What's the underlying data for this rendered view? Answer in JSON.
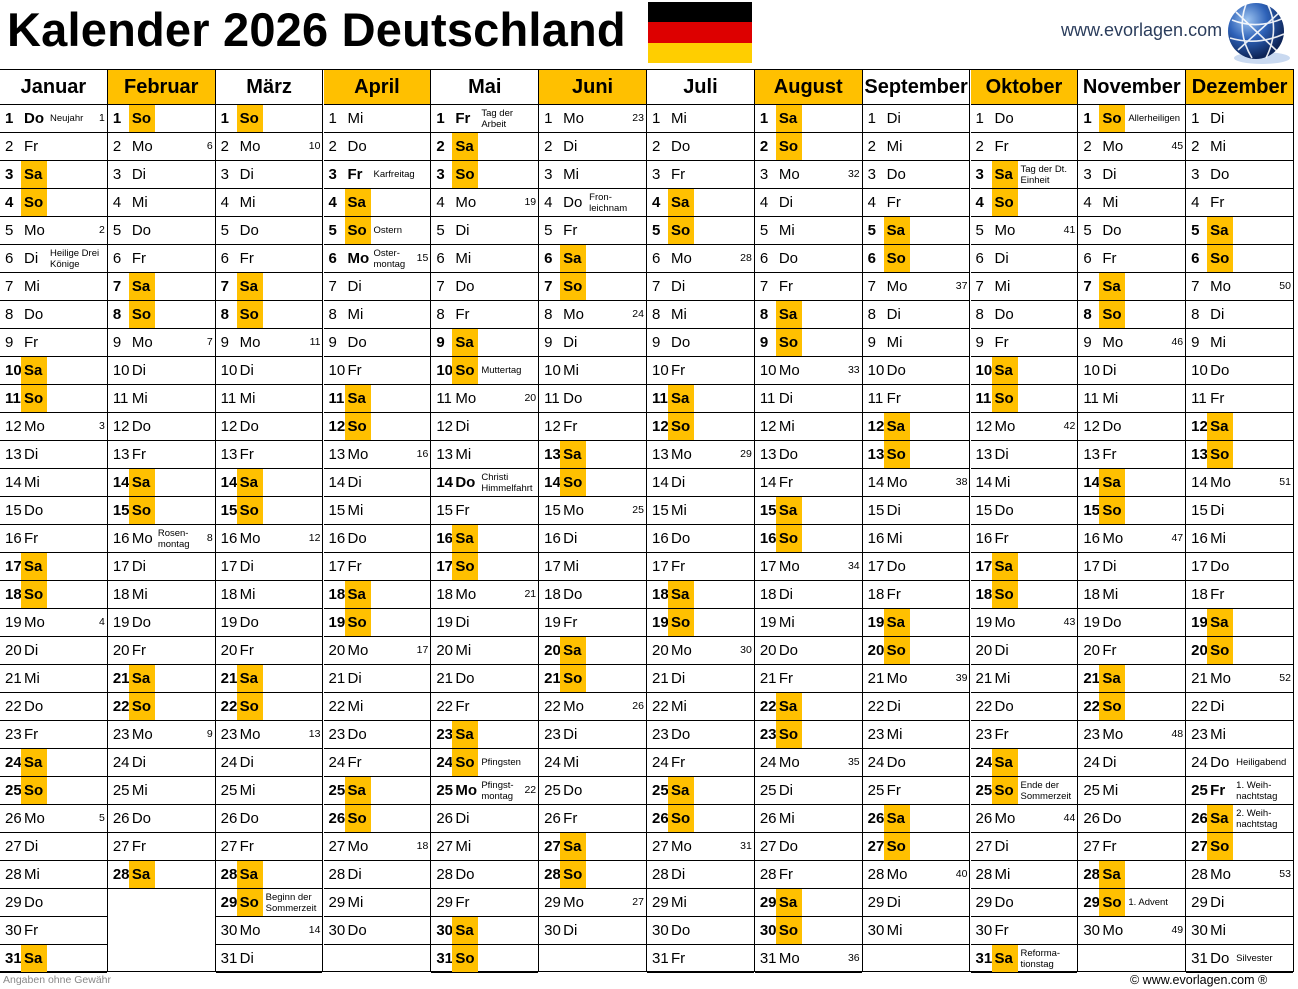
{
  "title": "Kalender 2026 Deutschland",
  "logo_text": "www.evorlagen.com",
  "footer": {
    "disclaimer": "Angaben ohne Gewähr",
    "copyright": "© www.evorlagen.com ®"
  },
  "colors": {
    "accent": "#FFC000",
    "flag_black": "#000000",
    "flag_red": "#DD0000",
    "flag_gold": "#FFCE00"
  },
  "weekend_days": [
    "Sa",
    "So"
  ],
  "day_numbers": [
    "1",
    "2",
    "3",
    "4",
    "5",
    "6",
    "7",
    "8",
    "9",
    "10",
    "11",
    "12",
    "13",
    "14",
    "15",
    "16",
    "17",
    "18",
    "19",
    "20",
    "21",
    "22",
    "23",
    "24",
    "25",
    "26",
    "27",
    "28",
    "29",
    "30",
    "31"
  ],
  "months": [
    {
      "name": "Januar",
      "highlight": false,
      "weekdays": [
        "Do",
        "Fr",
        "Sa",
        "So",
        "Mo",
        "Di",
        "Mi",
        "Do",
        "Fr",
        "Sa",
        "So",
        "Mo",
        "Di",
        "Mi",
        "Do",
        "Fr",
        "Sa",
        "So",
        "Mo",
        "Di",
        "Mi",
        "Do",
        "Fr",
        "Sa",
        "So",
        "Mo",
        "Di",
        "Mi",
        "Do",
        "Fr",
        "Sa"
      ],
      "holidays": {
        "1": {
          "t": "Neujahr",
          "b": true
        },
        "6": {
          "t": "Heilige Drei\nKönige",
          "b": false
        }
      },
      "kw": {
        "1": "1",
        "5": "2",
        "12": "3",
        "19": "4",
        "26": "5"
      }
    },
    {
      "name": "Februar",
      "highlight": true,
      "weekdays": [
        "So",
        "Mo",
        "Di",
        "Mi",
        "Do",
        "Fr",
        "Sa",
        "So",
        "Mo",
        "Di",
        "Mi",
        "Do",
        "Fr",
        "Sa",
        "So",
        "Mo",
        "Di",
        "Mi",
        "Do",
        "Fr",
        "Sa",
        "So",
        "Mo",
        "Di",
        "Mi",
        "Do",
        "Fr",
        "Sa"
      ],
      "holidays": {
        "16": {
          "t": "Rosen-\nmontag",
          "b": false
        }
      },
      "kw": {
        "2": "6",
        "9": "7",
        "16": "8",
        "23": "9"
      }
    },
    {
      "name": "März",
      "highlight": false,
      "weekdays": [
        "So",
        "Mo",
        "Di",
        "Mi",
        "Do",
        "Fr",
        "Sa",
        "So",
        "Mo",
        "Di",
        "Mi",
        "Do",
        "Fr",
        "Sa",
        "So",
        "Mo",
        "Di",
        "Mi",
        "Do",
        "Fr",
        "Sa",
        "So",
        "Mo",
        "Di",
        "Mi",
        "Do",
        "Fr",
        "Sa",
        "So",
        "Mo",
        "Di"
      ],
      "holidays": {
        "29": {
          "t": "Beginn der\nSommerzeit",
          "b": false
        }
      },
      "kw": {
        "2": "10",
        "9": "11",
        "16": "12",
        "23": "13",
        "30": "14"
      }
    },
    {
      "name": "April",
      "highlight": true,
      "weekdays": [
        "Mi",
        "Do",
        "Fr",
        "Sa",
        "So",
        "Mo",
        "Di",
        "Mi",
        "Do",
        "Fr",
        "Sa",
        "So",
        "Mo",
        "Di",
        "Mi",
        "Do",
        "Fr",
        "Sa",
        "So",
        "Mo",
        "Di",
        "Mi",
        "Do",
        "Fr",
        "Sa",
        "So",
        "Mo",
        "Di",
        "Mi",
        "Do"
      ],
      "holidays": {
        "3": {
          "t": "Karfreitag",
          "b": true
        },
        "5": {
          "t": "Ostern",
          "b": true
        },
        "6": {
          "t": "Oster-\nmontag",
          "b": true
        }
      },
      "kw": {
        "6": "15",
        "13": "16",
        "20": "17",
        "27": "18"
      }
    },
    {
      "name": "Mai",
      "highlight": false,
      "weekdays": [
        "Fr",
        "Sa",
        "So",
        "Mo",
        "Di",
        "Mi",
        "Do",
        "Fr",
        "Sa",
        "So",
        "Mo",
        "Di",
        "Mi",
        "Do",
        "Fr",
        "Sa",
        "So",
        "Mo",
        "Di",
        "Mi",
        "Do",
        "Fr",
        "Sa",
        "So",
        "Mo",
        "Di",
        "Mi",
        "Do",
        "Fr",
        "Sa",
        "So"
      ],
      "holidays": {
        "1": {
          "t": "Tag der\nArbeit",
          "b": true
        },
        "10": {
          "t": "Muttertag",
          "b": false
        },
        "14": {
          "t": "Christi\nHimmelfahrt",
          "b": true
        },
        "24": {
          "t": "Pfingsten",
          "b": true
        },
        "25": {
          "t": "Pfingst-\nmontag",
          "b": true
        }
      },
      "kw": {
        "4": "19",
        "11": "20",
        "18": "21",
        "25": "22"
      }
    },
    {
      "name": "Juni",
      "highlight": true,
      "weekdays": [
        "Mo",
        "Di",
        "Mi",
        "Do",
        "Fr",
        "Sa",
        "So",
        "Mo",
        "Di",
        "Mi",
        "Do",
        "Fr",
        "Sa",
        "So",
        "Mo",
        "Di",
        "Mi",
        "Do",
        "Fr",
        "Sa",
        "So",
        "Mo",
        "Di",
        "Mi",
        "Do",
        "Fr",
        "Sa",
        "So",
        "Mo",
        "Di"
      ],
      "holidays": {
        "4": {
          "t": "Fron-\nleichnam",
          "b": false
        }
      },
      "kw": {
        "1": "23",
        "8": "24",
        "15": "25",
        "22": "26",
        "29": "27"
      }
    },
    {
      "name": "Juli",
      "highlight": false,
      "weekdays": [
        "Mi",
        "Do",
        "Fr",
        "Sa",
        "So",
        "Mo",
        "Di",
        "Mi",
        "Do",
        "Fr",
        "Sa",
        "So",
        "Mo",
        "Di",
        "Mi",
        "Do",
        "Fr",
        "Sa",
        "So",
        "Mo",
        "Di",
        "Mi",
        "Do",
        "Fr",
        "Sa",
        "So",
        "Mo",
        "Di",
        "Mi",
        "Do",
        "Fr"
      ],
      "holidays": {},
      "kw": {
        "6": "28",
        "13": "29",
        "20": "30",
        "27": "31"
      }
    },
    {
      "name": "August",
      "highlight": true,
      "weekdays": [
        "Sa",
        "So",
        "Mo",
        "Di",
        "Mi",
        "Do",
        "Fr",
        "Sa",
        "So",
        "Mo",
        "Di",
        "Mi",
        "Do",
        "Fr",
        "Sa",
        "So",
        "Mo",
        "Di",
        "Mi",
        "Do",
        "Fr",
        "Sa",
        "So",
        "Mo",
        "Di",
        "Mi",
        "Do",
        "Fr",
        "Sa",
        "So",
        "Mo"
      ],
      "holidays": {},
      "kw": {
        "3": "32",
        "10": "33",
        "17": "34",
        "24": "35",
        "31": "36"
      }
    },
    {
      "name": "September",
      "highlight": false,
      "weekdays": [
        "Di",
        "Mi",
        "Do",
        "Fr",
        "Sa",
        "So",
        "Mo",
        "Di",
        "Mi",
        "Do",
        "Fr",
        "Sa",
        "So",
        "Mo",
        "Di",
        "Mi",
        "Do",
        "Fr",
        "Sa",
        "So",
        "Mo",
        "Di",
        "Mi",
        "Do",
        "Fr",
        "Sa",
        "So",
        "Mo",
        "Di",
        "Mi"
      ],
      "holidays": {},
      "kw": {
        "7": "37",
        "14": "38",
        "21": "39",
        "28": "40"
      }
    },
    {
      "name": "Oktober",
      "highlight": true,
      "weekdays": [
        "Do",
        "Fr",
        "Sa",
        "So",
        "Mo",
        "Di",
        "Mi",
        "Do",
        "Fr",
        "Sa",
        "So",
        "Mo",
        "Di",
        "Mi",
        "Do",
        "Fr",
        "Sa",
        "So",
        "Mo",
        "Di",
        "Mi",
        "Do",
        "Fr",
        "Sa",
        "So",
        "Mo",
        "Di",
        "Mi",
        "Do",
        "Fr",
        "Sa"
      ],
      "holidays": {
        "3": {
          "t": "Tag der Dt.\nEinheit",
          "b": true
        },
        "25": {
          "t": "Ende der\nSommerzeit",
          "b": false
        },
        "31": {
          "t": "Reforma-\ntionstag",
          "b": false
        }
      },
      "kw": {
        "5": "41",
        "12": "42",
        "19": "43",
        "26": "44"
      }
    },
    {
      "name": "November",
      "highlight": false,
      "weekdays": [
        "So",
        "Mo",
        "Di",
        "Mi",
        "Do",
        "Fr",
        "Sa",
        "So",
        "Mo",
        "Di",
        "Mi",
        "Do",
        "Fr",
        "Sa",
        "So",
        "Mo",
        "Di",
        "Mi",
        "Do",
        "Fr",
        "Sa",
        "So",
        "Mo",
        "Di",
        "Mi",
        "Do",
        "Fr",
        "Sa",
        "So",
        "Mo"
      ],
      "holidays": {
        "1": {
          "t": "Allerheiligen",
          "b": false
        },
        "29": {
          "t": "1. Advent",
          "b": false
        }
      },
      "kw": {
        "2": "45",
        "9": "46",
        "16": "47",
        "23": "48",
        "30": "49"
      }
    },
    {
      "name": "Dezember",
      "highlight": true,
      "weekdays": [
        "Di",
        "Mi",
        "Do",
        "Fr",
        "Sa",
        "So",
        "Mo",
        "Di",
        "Mi",
        "Do",
        "Fr",
        "Sa",
        "So",
        "Mo",
        "Di",
        "Mi",
        "Do",
        "Fr",
        "Sa",
        "So",
        "Mo",
        "Di",
        "Mi",
        "Do",
        "Fr",
        "Sa",
        "So",
        "Mo",
        "Di",
        "Mi",
        "Do"
      ],
      "holidays": {
        "24": {
          "t": "Heiligabend",
          "b": false
        },
        "25": {
          "t": "1. Weih-\nnachtstag",
          "b": true
        },
        "26": {
          "t": "2. Weih-\nnachtstag",
          "b": true
        },
        "31": {
          "t": "Silvester",
          "b": false
        }
      },
      "kw": {
        "7": "50",
        "14": "51",
        "21": "52",
        "28": "53"
      }
    }
  ]
}
